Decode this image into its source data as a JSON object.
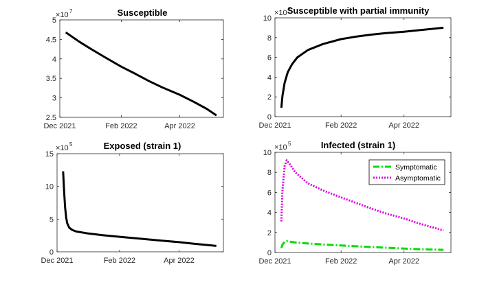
{
  "chart_data": [
    {
      "type": "line",
      "title": "Susceptible",
      "exponent": "7",
      "xlim": [
        "2021-12-01",
        "2022-05-15"
      ],
      "ylim": [
        2.5,
        5
      ],
      "x_ticks": [
        "Dec 2021",
        "Feb 2022",
        "Apr 2022"
      ],
      "x_tick_dates": [
        "2021-12-01",
        "2022-02-01",
        "2022-04-01"
      ],
      "y_ticks": [
        "2.5",
        "3",
        "3.5",
        "4",
        "4.5",
        "5"
      ],
      "y_tick_values": [
        2.5,
        3,
        3.5,
        4,
        4.5,
        5
      ],
      "series": [
        {
          "color": "#000000",
          "style": "solid",
          "x": [
            "2021-12-07",
            "2021-12-20",
            "2022-01-01",
            "2022-01-15",
            "2022-02-01",
            "2022-02-15",
            "2022-03-01",
            "2022-03-15",
            "2022-04-01",
            "2022-04-15",
            "2022-04-28",
            "2022-05-08"
          ],
          "y": [
            4.68,
            4.45,
            4.26,
            4.05,
            3.8,
            3.62,
            3.43,
            3.26,
            3.08,
            2.9,
            2.72,
            2.55
          ]
        }
      ]
    },
    {
      "type": "line",
      "title": "Susceptible with partial immunity",
      "exponent": "7",
      "xlim": [
        "2021-12-01",
        "2022-05-15"
      ],
      "ylim": [
        0,
        10
      ],
      "x_ticks": [
        "Dec 2021",
        "Feb 2022",
        "Apr 2022"
      ],
      "x_tick_dates": [
        "2021-12-01",
        "2022-02-01",
        "2022-04-01"
      ],
      "y_ticks": [
        "0",
        "2",
        "4",
        "6",
        "8",
        "10"
      ],
      "y_tick_values": [
        0,
        2,
        4,
        6,
        8,
        10
      ],
      "series": [
        {
          "color": "#000000",
          "style": "solid",
          "x": [
            "2021-12-07",
            "2021-12-08",
            "2021-12-10",
            "2021-12-13",
            "2021-12-17",
            "2021-12-22",
            "2022-01-01",
            "2022-01-15",
            "2022-02-01",
            "2022-02-15",
            "2022-03-01",
            "2022-03-15",
            "2022-04-01",
            "2022-04-15",
            "2022-05-08"
          ],
          "y": [
            0.9,
            2.1,
            3.4,
            4.5,
            5.3,
            6.0,
            6.75,
            7.35,
            7.85,
            8.1,
            8.3,
            8.45,
            8.6,
            8.75,
            9.0
          ]
        }
      ]
    },
    {
      "type": "line",
      "title": "Exposed (strain 1)",
      "exponent": "5",
      "xlim": [
        "2021-12-01",
        "2022-05-15"
      ],
      "ylim": [
        0,
        15
      ],
      "x_ticks": [
        "Dec 2021",
        "Feb 2022",
        "Apr 2022"
      ],
      "x_tick_dates": [
        "2021-12-01",
        "2022-02-01",
        "2022-04-01"
      ],
      "y_ticks": [
        "0",
        "5",
        "10",
        "15"
      ],
      "y_tick_values": [
        0,
        5,
        10,
        15
      ],
      "series": [
        {
          "color": "#000000",
          "style": "solid",
          "x": [
            "2021-12-07",
            "2021-12-08",
            "2021-12-09",
            "2021-12-10",
            "2021-12-11",
            "2021-12-13",
            "2021-12-16",
            "2021-12-20",
            "2022-01-01",
            "2022-01-15",
            "2022-02-01",
            "2022-02-15",
            "2022-03-01",
            "2022-03-15",
            "2022-04-01",
            "2022-04-15",
            "2022-05-08"
          ],
          "y": [
            12.3,
            9.2,
            6.8,
            5.3,
            4.4,
            3.7,
            3.35,
            3.1,
            2.8,
            2.55,
            2.3,
            2.1,
            1.9,
            1.7,
            1.48,
            1.25,
            0.9
          ]
        }
      ]
    },
    {
      "type": "line",
      "title": "Infected (strain 1)",
      "exponent": "5",
      "xlim": [
        "2021-12-01",
        "2022-05-15"
      ],
      "ylim": [
        0,
        10
      ],
      "x_ticks": [
        "Dec 2021",
        "Feb 2022",
        "Apr 2022"
      ],
      "x_tick_dates": [
        "2021-12-01",
        "2022-02-01",
        "2022-04-01"
      ],
      "y_ticks": [
        "0",
        "2",
        "4",
        "6",
        "8",
        "10"
      ],
      "y_tick_values": [
        0,
        2,
        4,
        6,
        8,
        10
      ],
      "legend_position": "top-right",
      "series": [
        {
          "name": "Symptomatic",
          "color": "#00dd00",
          "style": "dashdot",
          "x": [
            "2021-12-07",
            "2021-12-08",
            "2021-12-10",
            "2021-12-12",
            "2021-12-15",
            "2021-12-20",
            "2022-01-01",
            "2022-01-15",
            "2022-02-01",
            "2022-02-15",
            "2022-03-01",
            "2022-03-15",
            "2022-04-01",
            "2022-04-15",
            "2022-05-08"
          ],
          "y": [
            0.45,
            0.8,
            1.05,
            1.12,
            1.08,
            1.0,
            0.9,
            0.8,
            0.7,
            0.62,
            0.55,
            0.48,
            0.4,
            0.33,
            0.27
          ]
        },
        {
          "name": "Asymptomatic",
          "color": "#dd00dd",
          "style": "dotted",
          "x": [
            "2021-12-07",
            "2021-12-08",
            "2021-12-10",
            "2021-12-12",
            "2021-12-15",
            "2021-12-20",
            "2022-01-01",
            "2022-01-15",
            "2022-02-01",
            "2022-02-15",
            "2022-03-01",
            "2022-03-15",
            "2022-04-01",
            "2022-04-15",
            "2022-05-08"
          ],
          "y": [
            3.1,
            6.2,
            8.6,
            9.2,
            8.8,
            8.0,
            6.9,
            6.2,
            5.5,
            4.95,
            4.4,
            3.9,
            3.4,
            2.9,
            2.2
          ]
        }
      ]
    }
  ]
}
